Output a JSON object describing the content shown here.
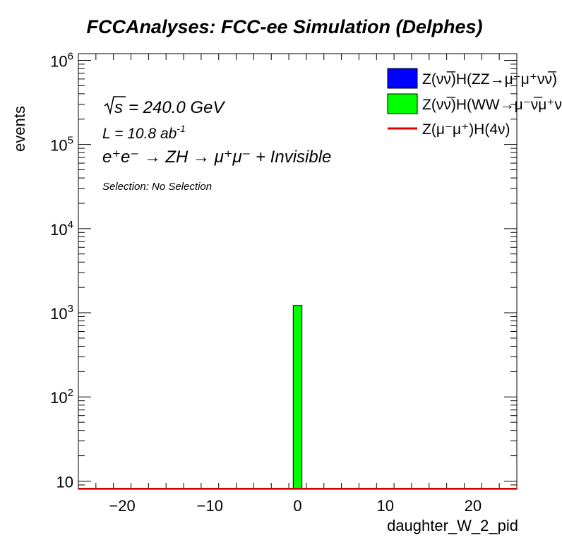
{
  "chart_data": {
    "type": "bar",
    "title": "FCCAnalyses: FCC-ee Simulation (Delphes)",
    "xlabel": "daughter_W_2_pid",
    "ylabel": "events",
    "xlim": [
      -25,
      25
    ],
    "ylim": [
      8,
      1200000
    ],
    "y_scale": "log",
    "grid": false,
    "legend_position": "top-right",
    "x_ticks": [
      -20,
      -10,
      0,
      10,
      20
    ],
    "x_tick_labels": [
      "−20",
      "−10",
      "0",
      "10",
      "20"
    ],
    "y_ticks": [
      10,
      100,
      1000,
      10000,
      100000,
      1000000
    ],
    "y_tick_labels": [
      {
        "base": "10",
        "exp": ""
      },
      {
        "base": "10",
        "exp": "2"
      },
      {
        "base": "10",
        "exp": "3"
      },
      {
        "base": "10",
        "exp": "4"
      },
      {
        "base": "10",
        "exp": "5"
      },
      {
        "base": "10",
        "exp": "6"
      }
    ],
    "series": [
      {
        "name": "Z(νν̅)H(ZZ→μ⁻μ⁺νν̅)",
        "style": "fill",
        "color": "#0000ff",
        "bins": []
      },
      {
        "name": "Z(νν̅)H(WW→μ⁻ν̅μ⁺ν)",
        "style": "fill",
        "color": "#00ff00",
        "bins": [
          {
            "x_low": -0.5,
            "x_high": 0.5,
            "value": 1220
          }
        ]
      },
      {
        "name": "Z(μ⁻μ⁺)H(4ν)",
        "style": "line",
        "color": "#dd0000",
        "bins": []
      }
    ],
    "annotations": {
      "sqrt_s": "= 240.0 GeV",
      "lumi_prefix": "L = 10.8 ab",
      "lumi_exp": "-1",
      "process": "e⁺e⁻ → ZH → μ⁺μ⁻ + Invisible",
      "selection": "Selection: No Selection"
    }
  }
}
